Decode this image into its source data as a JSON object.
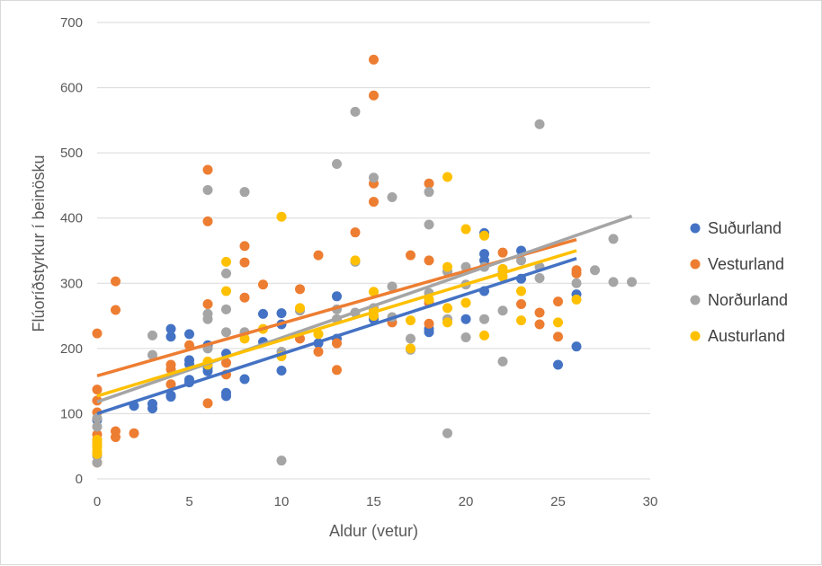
{
  "chart_data": {
    "type": "scatter",
    "title": "",
    "xlabel": "Aldur (vetur)",
    "ylabel": "Flúoríðstyrkur í beinösku",
    "xlim": [
      0,
      30
    ],
    "ylim": [
      0,
      700
    ],
    "xticks": [
      "0",
      "5",
      "10",
      "15",
      "20",
      "25",
      "30"
    ],
    "yticks": [
      "0",
      "100",
      "200",
      "300",
      "400",
      "500",
      "600",
      "700"
    ],
    "legend_position": "right",
    "series": [
      {
        "name": "Suðurland",
        "color": "#4472C4",
        "points": [
          [
            0,
            60
          ],
          [
            0,
            90
          ],
          [
            2,
            112
          ],
          [
            3,
            108
          ],
          [
            3,
            115
          ],
          [
            4,
            126
          ],
          [
            4,
            128
          ],
          [
            4,
            218
          ],
          [
            4,
            230
          ],
          [
            5,
            148
          ],
          [
            5,
            152
          ],
          [
            5,
            176
          ],
          [
            5,
            182
          ],
          [
            5,
            222
          ],
          [
            6,
            165
          ],
          [
            6,
            170
          ],
          [
            6,
            205
          ],
          [
            7,
            127
          ],
          [
            7,
            132
          ],
          [
            7,
            192
          ],
          [
            8,
            153
          ],
          [
            9,
            210
          ],
          [
            9,
            253
          ],
          [
            10,
            166
          ],
          [
            10,
            237
          ],
          [
            10,
            254
          ],
          [
            12,
            208
          ],
          [
            13,
            280
          ],
          [
            13,
            215
          ],
          [
            15,
            250
          ],
          [
            15,
            245
          ],
          [
            18,
            225
          ],
          [
            18,
            230
          ],
          [
            20,
            245
          ],
          [
            21,
            377
          ],
          [
            21,
            345
          ],
          [
            21,
            335
          ],
          [
            21,
            288
          ],
          [
            23,
            350
          ],
          [
            23,
            307
          ],
          [
            25,
            175
          ],
          [
            26,
            283
          ],
          [
            26,
            203
          ]
        ],
        "trend": [
          [
            0,
            100
          ],
          [
            26,
            338
          ]
        ]
      },
      {
        "name": "Vesturland",
        "color": "#ED7D31",
        "points": [
          [
            0,
            223
          ],
          [
            0,
            137
          ],
          [
            0,
            120
          ],
          [
            0,
            102
          ],
          [
            0,
            68
          ],
          [
            0,
            25
          ],
          [
            1,
            303
          ],
          [
            1,
            259
          ],
          [
            1,
            73
          ],
          [
            1,
            64
          ],
          [
            2,
            70
          ],
          [
            4,
            175
          ],
          [
            4,
            168
          ],
          [
            4,
            145
          ],
          [
            5,
            205
          ],
          [
            6,
            474
          ],
          [
            6,
            395
          ],
          [
            6,
            268
          ],
          [
            6,
            116
          ],
          [
            7,
            178
          ],
          [
            7,
            160
          ],
          [
            8,
            357
          ],
          [
            8,
            332
          ],
          [
            8,
            278
          ],
          [
            9,
            298
          ],
          [
            11,
            291
          ],
          [
            11,
            215
          ],
          [
            12,
            343
          ],
          [
            12,
            195
          ],
          [
            13,
            208
          ],
          [
            13,
            167
          ],
          [
            14,
            378
          ],
          [
            15,
            643
          ],
          [
            15,
            588
          ],
          [
            15,
            453
          ],
          [
            15,
            425
          ],
          [
            16,
            240
          ],
          [
            17,
            343
          ],
          [
            18,
            453
          ],
          [
            18,
            335
          ],
          [
            18,
            270
          ],
          [
            18,
            238
          ],
          [
            19,
            318
          ],
          [
            22,
            347
          ],
          [
            23,
            268
          ],
          [
            24,
            255
          ],
          [
            24,
            237
          ],
          [
            25,
            272
          ],
          [
            25,
            218
          ],
          [
            26,
            320
          ],
          [
            26,
            315
          ]
        ],
        "trend": [
          [
            0,
            158
          ],
          [
            26,
            367
          ]
        ]
      },
      {
        "name": "Norðurland",
        "color": "#A5A5A5",
        "points": [
          [
            0,
            25
          ],
          [
            0,
            35
          ],
          [
            0,
            80
          ],
          [
            0,
            93
          ],
          [
            3,
            220
          ],
          [
            3,
            190
          ],
          [
            6,
            443
          ],
          [
            6,
            253
          ],
          [
            6,
            245
          ],
          [
            6,
            200
          ],
          [
            7,
            315
          ],
          [
            7,
            260
          ],
          [
            7,
            225
          ],
          [
            8,
            440
          ],
          [
            8,
            225
          ],
          [
            10,
            28
          ],
          [
            10,
            195
          ],
          [
            11,
            258
          ],
          [
            13,
            483
          ],
          [
            13,
            260
          ],
          [
            13,
            245
          ],
          [
            14,
            563
          ],
          [
            14,
            333
          ],
          [
            14,
            255
          ],
          [
            15,
            462
          ],
          [
            15,
            262
          ],
          [
            16,
            432
          ],
          [
            16,
            295
          ],
          [
            16,
            248
          ],
          [
            17,
            198
          ],
          [
            17,
            215
          ],
          [
            18,
            440
          ],
          [
            18,
            390
          ],
          [
            18,
            285
          ],
          [
            19,
            70
          ],
          [
            19,
            245
          ],
          [
            19,
            318
          ],
          [
            20,
            325
          ],
          [
            20,
            298
          ],
          [
            20,
            217
          ],
          [
            21,
            245
          ],
          [
            21,
            325
          ],
          [
            22,
            180
          ],
          [
            22,
            258
          ],
          [
            22,
            318
          ],
          [
            23,
            335
          ],
          [
            24,
            544
          ],
          [
            24,
            325
          ],
          [
            24,
            308
          ],
          [
            26,
            300
          ],
          [
            27,
            320
          ],
          [
            28,
            368
          ],
          [
            28,
            302
          ],
          [
            29,
            302
          ]
        ],
        "trend": [
          [
            0,
            118
          ],
          [
            29,
            403
          ]
        ]
      },
      {
        "name": "Austurland",
        "color": "#FFC000",
        "points": [
          [
            0,
            38
          ],
          [
            0,
            42
          ],
          [
            0,
            48
          ],
          [
            0,
            52
          ],
          [
            0,
            55
          ],
          [
            0,
            60
          ],
          [
            6,
            180
          ],
          [
            6,
            175
          ],
          [
            7,
            333
          ],
          [
            7,
            288
          ],
          [
            8,
            215
          ],
          [
            9,
            230
          ],
          [
            10,
            402
          ],
          [
            10,
            188
          ],
          [
            11,
            262
          ],
          [
            12,
            222
          ],
          [
            14,
            335
          ],
          [
            15,
            287
          ],
          [
            15,
            258
          ],
          [
            15,
            250
          ],
          [
            17,
            243
          ],
          [
            17,
            200
          ],
          [
            18,
            275
          ],
          [
            19,
            463
          ],
          [
            19,
            325
          ],
          [
            19,
            262
          ],
          [
            19,
            240
          ],
          [
            20,
            383
          ],
          [
            20,
            270
          ],
          [
            21,
            373
          ],
          [
            21,
            220
          ],
          [
            22,
            322
          ],
          [
            22,
            310
          ],
          [
            23,
            288
          ],
          [
            23,
            243
          ],
          [
            25,
            240
          ],
          [
            26,
            275
          ]
        ],
        "trend": [
          [
            0,
            127
          ],
          [
            26,
            350
          ]
        ]
      }
    ]
  }
}
